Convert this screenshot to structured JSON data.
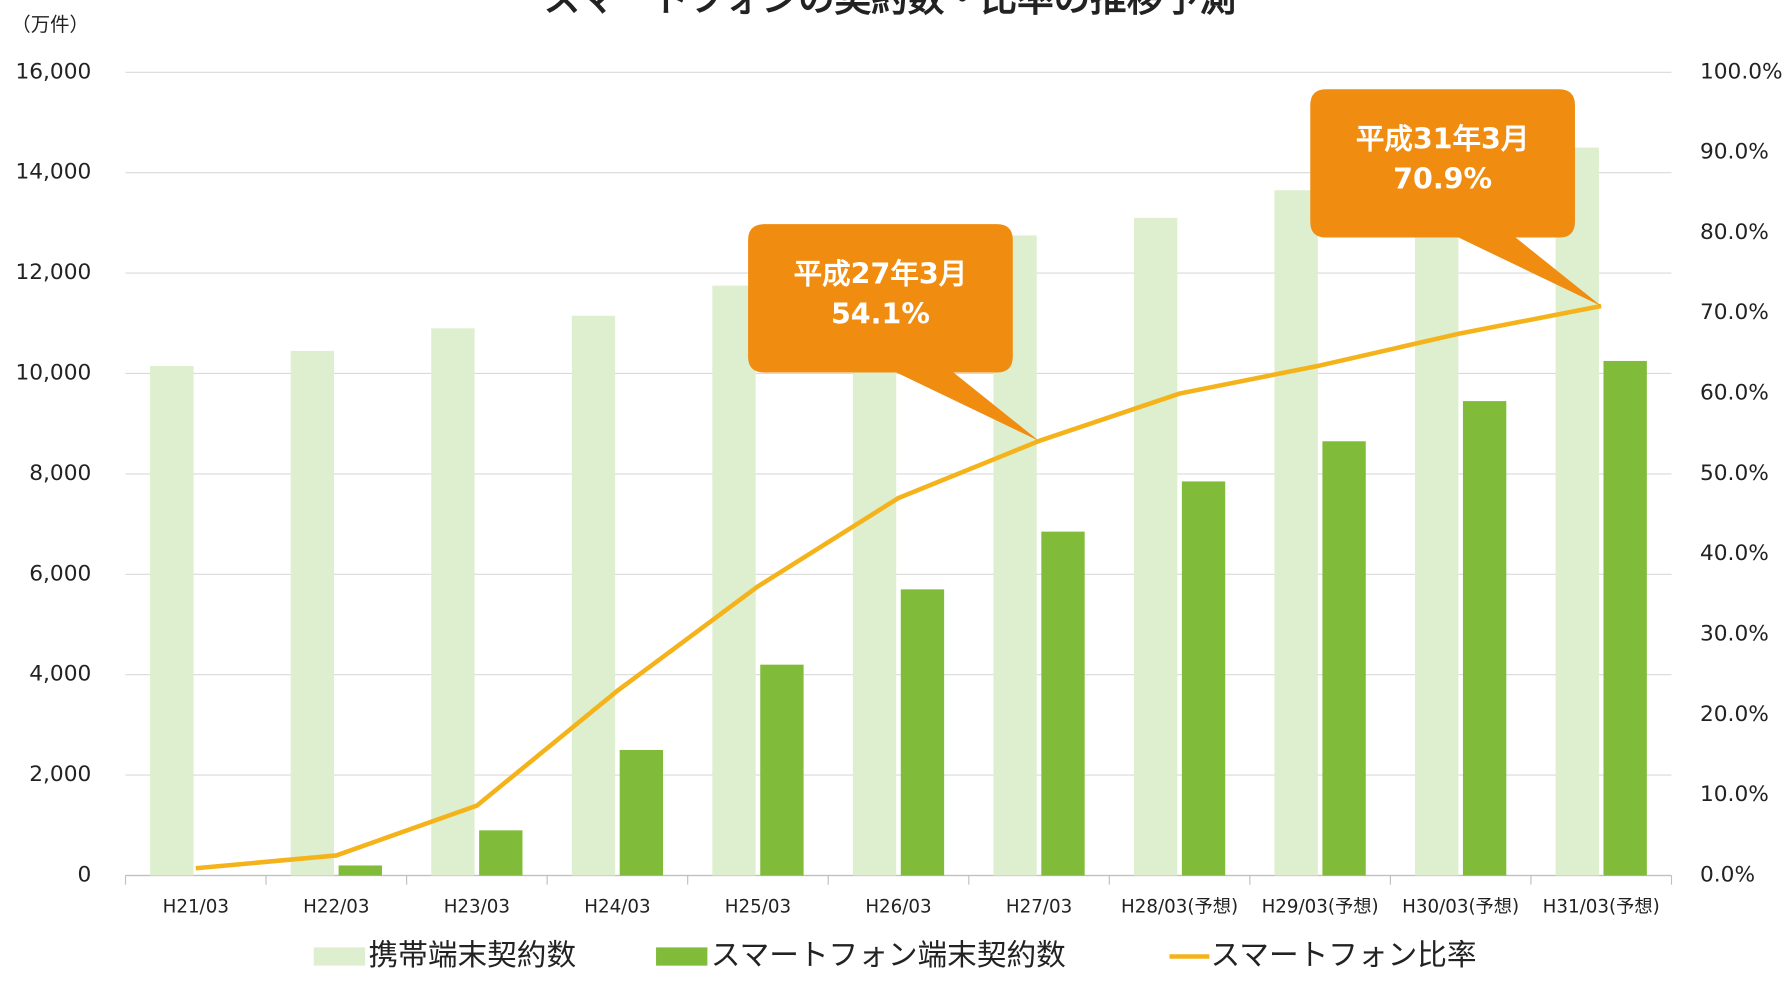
{
  "chart_data": {
    "type": "bar",
    "title": "スマートフォンの契約数・比率の推移予測",
    "y_label": "（万件）",
    "categories": [
      "H21/03",
      "H22/03",
      "H23/03",
      "H24/03",
      "H25/03",
      "H26/03",
      "H27/03",
      "H28/03(予想)",
      "H29/03(予想)",
      "H30/03(予想)",
      "H31/03(予想)"
    ],
    "series": [
      {
        "name": "携帯端末契約数",
        "color": "#deefcf",
        "values": [
          10150,
          10450,
          10900,
          11150,
          11750,
          12250,
          12750,
          13100,
          13650,
          14100,
          14500
        ]
      },
      {
        "name": "スマートフォン端末契約数",
        "color": "#80bc3a",
        "values": [
          0,
          200,
          900,
          2500,
          4200,
          5700,
          6850,
          7850,
          8650,
          9450,
          10250
        ]
      },
      {
        "name": "スマートフォン比率",
        "color": "#f5b31b",
        "type": "line",
        "axis": "y2",
        "values": [
          0.9,
          2.5,
          8.7,
          23,
          36,
          47,
          54.1,
          60,
          63.5,
          67.5,
          70.9
        ]
      }
    ],
    "ylim": [
      0,
      16000
    ],
    "yticks": [
      0,
      {
        "value": 2000,
        "label": "2,000"
      },
      {
        "value": 4000,
        "label": "4,000"
      },
      {
        "value": 6000,
        "label": "6,000"
      },
      {
        "value": 8000,
        "label": "8,000"
      },
      {
        "value": 10000,
        "label": "10,000"
      },
      {
        "value": 12000,
        "label": "12,000"
      },
      {
        "value": 14000,
        "label": "14,000"
      },
      {
        "value": 16000,
        "label": "16,000"
      }
    ],
    "y2lim": [
      0,
      100
    ],
    "y2ticks": [
      {
        "value": 0,
        "label": "0.0%"
      },
      {
        "value": 10,
        "label": "10.0%"
      },
      {
        "value": 20,
        "label": "20.0%"
      },
      {
        "value": 30,
        "label": "30.0%"
      },
      {
        "value": 40,
        "label": "40.0%"
      },
      {
        "value": 50,
        "label": "50.0%"
      },
      {
        "value": 60,
        "label": "60.0%"
      },
      {
        "value": 70,
        "label": "70.0%"
      },
      {
        "value": 80,
        "label": "80.0%"
      },
      {
        "value": 90,
        "label": "90.0%"
      },
      {
        "value": 100,
        "label": "100.0%"
      }
    ],
    "grid": true,
    "legend": "bottom",
    "annotations": [
      {
        "index": 6,
        "lines": [
          "平成27年3月",
          "54.1%"
        ],
        "color": "#f08c10"
      },
      {
        "index": 10,
        "lines": [
          "平成31年3月",
          "70.9%"
        ],
        "color": "#f08c10"
      }
    ]
  }
}
